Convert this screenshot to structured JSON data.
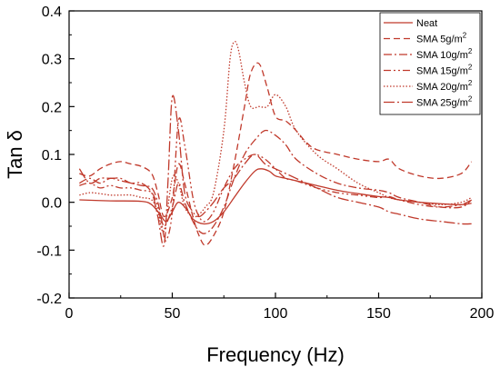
{
  "chart_data": {
    "type": "line",
    "xlabel": "Frequency (Hz)",
    "ylabel": "Tan δ",
    "xlim": [
      0,
      200
    ],
    "ylim": [
      -0.2,
      0.4
    ],
    "xticks": [
      "0",
      "50",
      "100",
      "150",
      "200"
    ],
    "yticks": [
      "-0.2",
      "-0.1",
      "0.0",
      "0.1",
      "0.2",
      "0.3",
      "0.4"
    ],
    "grid": false,
    "legend_position": "top-right",
    "line_color": "#c0392b",
    "series": [
      {
        "name": "Neat",
        "style": "solid",
        "x": [
          5,
          20,
          35,
          40,
          44,
          47,
          50,
          53,
          57,
          60,
          65,
          70,
          75,
          80,
          85,
          90,
          93,
          97,
          100,
          105,
          110,
          120,
          130,
          140,
          150,
          155,
          160,
          170,
          180,
          190,
          195
        ],
        "y": [
          0.005,
          0.003,
          0.002,
          -0.005,
          -0.025,
          -0.04,
          -0.02,
          0.0,
          -0.015,
          -0.035,
          -0.045,
          -0.04,
          -0.02,
          0.01,
          0.04,
          0.065,
          0.07,
          0.065,
          0.055,
          0.05,
          0.045,
          0.035,
          0.025,
          0.018,
          0.012,
          0.01,
          0.005,
          0.0,
          -0.003,
          -0.005,
          -0.002
        ]
      },
      {
        "name": "SMA 5g/m²",
        "legend_main": "SMA 5g/m",
        "legend_sup": "2",
        "style": "dashed",
        "x": [
          5,
          10,
          15,
          20,
          25,
          30,
          35,
          40,
          43,
          46,
          50,
          53,
          56,
          60,
          63,
          66,
          70,
          75,
          80,
          85,
          88,
          92,
          96,
          100,
          105,
          110,
          115,
          120,
          130,
          140,
          150,
          155,
          160,
          170,
          180,
          190,
          195
        ],
        "y": [
          0.06,
          0.055,
          0.07,
          0.08,
          0.085,
          0.08,
          0.075,
          0.06,
          0.02,
          -0.03,
          0.01,
          0.08,
          0.04,
          -0.03,
          -0.07,
          -0.09,
          -0.07,
          -0.02,
          0.08,
          0.2,
          0.27,
          0.29,
          0.24,
          0.18,
          0.17,
          0.15,
          0.125,
          0.11,
          0.1,
          0.09,
          0.085,
          0.09,
          0.07,
          0.055,
          0.05,
          0.06,
          0.085
        ]
      },
      {
        "name": "SMA 10g/m²",
        "legend_main": "SMA 10g/m",
        "legend_sup": "2",
        "style": "dashdot",
        "x": [
          5,
          10,
          15,
          20,
          25,
          30,
          35,
          40,
          43,
          46,
          50,
          53,
          56,
          60,
          63,
          66,
          70,
          75,
          80,
          85,
          90,
          95,
          100,
          105,
          110,
          120,
          130,
          140,
          150,
          155,
          160,
          170,
          180,
          190,
          195
        ],
        "y": [
          0.04,
          0.05,
          0.04,
          0.05,
          0.045,
          0.04,
          0.035,
          0.03,
          0.0,
          -0.05,
          -0.01,
          0.04,
          0.0,
          -0.04,
          -0.06,
          -0.065,
          -0.05,
          -0.01,
          0.05,
          0.1,
          0.13,
          0.15,
          0.14,
          0.12,
          0.09,
          0.06,
          0.04,
          0.03,
          0.025,
          0.02,
          0.01,
          0.0,
          -0.01,
          -0.01,
          0.005
        ]
      },
      {
        "name": "SMA 15g/m²",
        "legend_main": "SMA 15g/m",
        "legend_sup": "2",
        "style": "dashdotdot",
        "x": [
          5,
          10,
          15,
          20,
          25,
          30,
          35,
          40,
          43,
          45,
          47,
          50,
          53,
          56,
          60,
          63,
          66,
          70,
          75,
          80,
          85,
          90,
          95,
          100,
          105,
          110,
          120,
          130,
          140,
          150,
          155,
          160,
          170,
          180,
          190,
          195
        ],
        "y": [
          0.035,
          0.04,
          0.03,
          0.035,
          0.03,
          0.03,
          0.025,
          0.02,
          -0.01,
          -0.05,
          -0.08,
          -0.02,
          0.17,
          0.12,
          0.01,
          -0.03,
          -0.04,
          -0.02,
          0.03,
          0.07,
          0.09,
          0.1,
          0.09,
          0.07,
          0.05,
          0.045,
          0.03,
          0.02,
          0.015,
          0.01,
          0.012,
          0.005,
          -0.005,
          -0.01,
          -0.005,
          0.005
        ]
      },
      {
        "name": "SMA 20g/m²",
        "legend_main": "SMA 20g/m",
        "legend_sup": "2",
        "style": "dotted",
        "x": [
          5,
          10,
          15,
          20,
          25,
          30,
          35,
          40,
          43,
          46,
          50,
          53,
          56,
          60,
          63,
          66,
          70,
          75,
          78,
          80,
          82,
          85,
          88,
          92,
          96,
          100,
          105,
          110,
          120,
          130,
          140,
          150,
          155,
          160,
          170,
          180,
          190,
          195
        ],
        "y": [
          0.015,
          0.02,
          0.018,
          0.015,
          0.015,
          0.015,
          0.01,
          0.005,
          -0.02,
          -0.06,
          0.05,
          0.04,
          -0.01,
          -0.03,
          -0.025,
          -0.01,
          0.02,
          0.15,
          0.3,
          0.335,
          0.32,
          0.25,
          0.2,
          0.2,
          0.2,
          0.225,
          0.2,
          0.15,
          0.1,
          0.07,
          0.04,
          0.02,
          0.01,
          0.005,
          0.0,
          -0.005,
          0.0,
          0.01
        ]
      },
      {
        "name": "SMA 25g/m²",
        "legend_main": "SMA 25g/m",
        "legend_sup": "2",
        "style": "dashdotlong",
        "x": [
          5,
          10,
          15,
          20,
          25,
          30,
          35,
          40,
          43,
          46,
          48,
          50,
          53,
          56,
          60,
          63,
          66,
          70,
          75,
          80,
          85,
          90,
          95,
          100,
          105,
          110,
          120,
          130,
          140,
          150,
          155,
          160,
          170,
          180,
          190,
          195
        ],
        "y": [
          0.07,
          0.04,
          0.05,
          0.05,
          0.05,
          0.04,
          0.04,
          0.02,
          -0.03,
          -0.09,
          0.05,
          0.22,
          0.15,
          0.02,
          -0.02,
          -0.03,
          -0.02,
          0.0,
          0.03,
          0.05,
          0.08,
          0.1,
          0.08,
          0.07,
          0.06,
          0.05,
          0.03,
          0.01,
          0.0,
          -0.01,
          -0.02,
          -0.025,
          -0.035,
          -0.04,
          -0.045,
          -0.045
        ]
      }
    ]
  }
}
